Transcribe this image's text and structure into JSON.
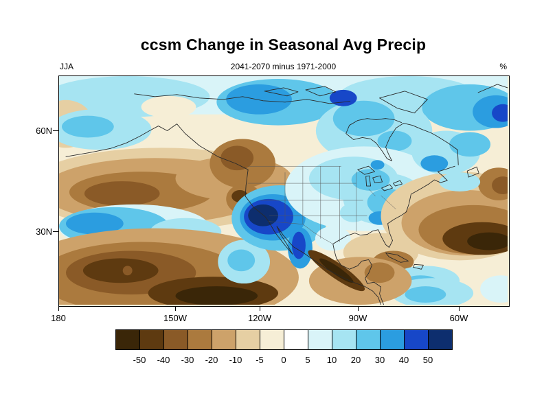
{
  "title": "ccsm Change in Seasonal Avg Precip",
  "subtitle_left": "JJA",
  "subtitle_center": "2041-2070 minus 1971-2000",
  "subtitle_right": "%",
  "y_axis": {
    "ticks": [
      "60N",
      "30N"
    ]
  },
  "x_axis": {
    "ticks": [
      "180",
      "150W",
      "120W",
      "90W",
      "60W"
    ]
  },
  "colorbar": {
    "labels": [
      "-50",
      "-40",
      "-30",
      "-20",
      "-10",
      "-5",
      "0",
      "5",
      "10",
      "20",
      "30",
      "40",
      "50"
    ],
    "colors": [
      "#3a2608",
      "#5e3a10",
      "#8a5a27",
      "#ab7a3e",
      "#cda26a",
      "#e6cfa3",
      "#f6eed6",
      "#ffffff",
      "#d9f4f8",
      "#a6e4f2",
      "#5fc6ea",
      "#2b9de0",
      "#1747c8",
      "#0d2e6e"
    ]
  },
  "chart_data": {
    "type": "heatmap",
    "subtype": "filled-contour-map",
    "title": "ccsm Change in Seasonal Avg Precip",
    "model": "ccsm",
    "season": "JJA",
    "comparison": "2041-2070 minus 1971-2000",
    "units": "%",
    "x_ticks": [
      "180",
      "150W",
      "120W",
      "90W",
      "60W"
    ],
    "y_ticks": [
      "60N",
      "30N"
    ],
    "contour_levels_percent": [
      -50,
      -40,
      -30,
      -20,
      -10,
      -5,
      0,
      5,
      10,
      20,
      30,
      40,
      50
    ],
    "palette_hex": [
      "#3a2608",
      "#5e3a10",
      "#8a5a27",
      "#ab7a3e",
      "#cda26a",
      "#e6cfa3",
      "#f6eed6",
      "#ffffff",
      "#d9f4f8",
      "#a6e4f2",
      "#5fc6ea",
      "#2b9de0",
      "#1747c8",
      "#0d2e6e"
    ],
    "legend_position": "bottom",
    "notable_regions": [
      {
        "region": "US Southwest / Arizona-New Mexico-Sonora",
        "change_percent": "+40 to >+50"
      },
      {
        "region": "Central and eastern United States",
        "change_percent": "+5 to +30"
      },
      {
        "region": "Hudson Bay and Arctic latitudes",
        "change_percent": "+5 to +30"
      },
      {
        "region": "Pacific near 30N west of 150W",
        "change_percent": "+10 to +30"
      },
      {
        "region": "Mid-latitude North Pacific band",
        "change_percent": "-10 to -40"
      },
      {
        "region": "Subtropical eastern Pacific (south of 25N)",
        "change_percent": "-30 to <-50"
      },
      {
        "region": "Western subtropical Atlantic / off US east coast",
        "change_percent": "-30 to <-50"
      },
      {
        "region": "Southwestern Mexico coast",
        "change_percent": "-40 to <-50"
      },
      {
        "region": "Caribbean south of Cuba",
        "change_percent": "+5 to +20"
      }
    ]
  }
}
